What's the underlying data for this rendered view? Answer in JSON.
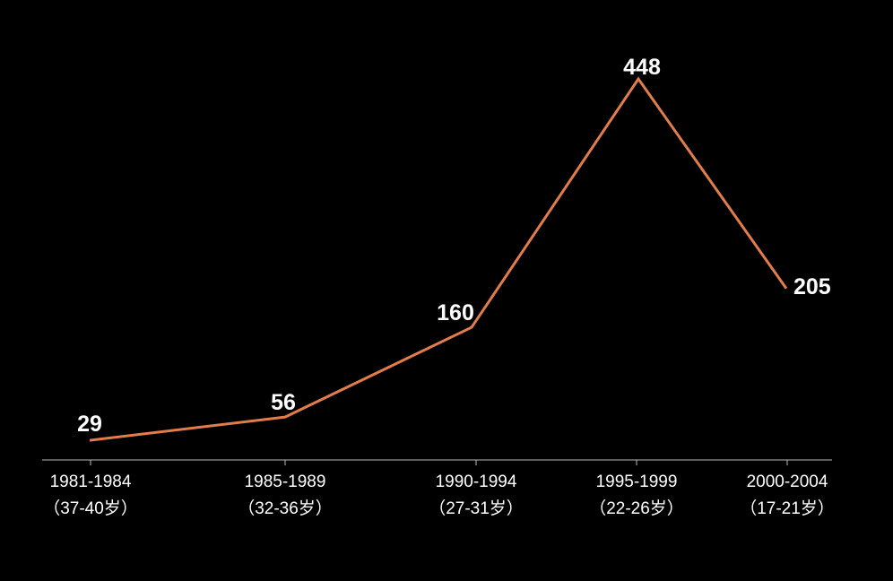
{
  "chart_data": {
    "type": "line",
    "categories": [
      [
        "1981-1984",
        "（37-40岁）"
      ],
      [
        "1985-1989",
        "（32-36岁）"
      ],
      [
        "1990-1994",
        "（27-31岁）"
      ],
      [
        "1995-1999",
        "（22-26岁）"
      ],
      [
        "2000-2004",
        "（17-21岁）"
      ]
    ],
    "series": [
      {
        "color": "#e27d4b",
        "values": [
          29,
          56,
          160,
          448,
          205
        ]
      }
    ],
    "ylim": [
      0,
      460
    ]
  }
}
